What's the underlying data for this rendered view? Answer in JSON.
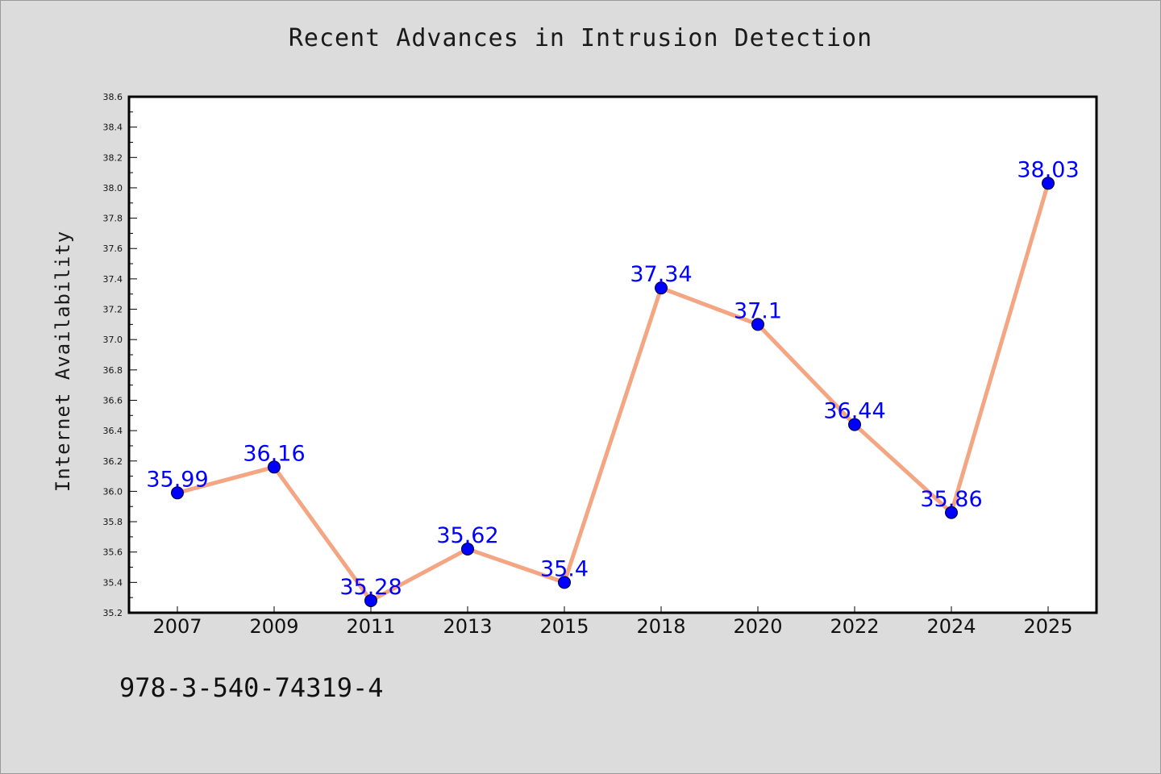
{
  "chart_data": {
    "type": "line",
    "title": "Recent Advances in Intrusion Detection",
    "xlabel": "",
    "ylabel": "Internet Availability",
    "categories": [
      "2007",
      "2009",
      "2011",
      "2013",
      "2015",
      "2018",
      "2020",
      "2022",
      "2024",
      "2025"
    ],
    "series": [
      {
        "values": [
          35.99,
          36.16,
          35.28,
          35.62,
          35.4,
          37.34,
          37.1,
          36.44,
          35.86,
          38.03
        ],
        "labels": [
          "35.99",
          "36.16",
          "35.28",
          "35.62",
          "35.4",
          "37.34",
          "37.1",
          "36.44",
          "35.86",
          "38.03"
        ]
      }
    ],
    "ylim": [
      35.2,
      38.6
    ],
    "yticks": [
      "35.2",
      "35.4",
      "35.6",
      "35.8",
      "36.0",
      "36.2",
      "36.4",
      "36.6",
      "36.8",
      "37.0",
      "37.2",
      "37.4",
      "37.6",
      "37.8",
      "38.0",
      "38.2",
      "38.4",
      "38.6"
    ],
    "grid": false,
    "legend": "none",
    "colors": {
      "line": "#f4a582",
      "marker": "#0000ff",
      "label": "#0000ff",
      "background": "#dcdcdc",
      "plot_background": "#ffffff"
    }
  },
  "footnote": "978-3-540-74319-4"
}
